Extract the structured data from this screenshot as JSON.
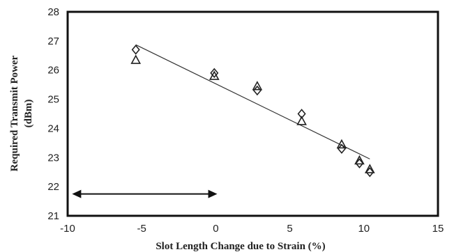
{
  "chart_data": {
    "type": "scatter",
    "title": "",
    "xlabel": "Slot Length Change due to Strain (%)",
    "ylabel_line1": "Required Transmit Power",
    "ylabel_line2": "(dBm)",
    "xlim": [
      -10,
      15
    ],
    "ylim": [
      21,
      28
    ],
    "xticks": [
      -10,
      -5,
      0,
      5,
      10,
      15
    ],
    "yticks": [
      21,
      22,
      23,
      24,
      25,
      26,
      27,
      28
    ],
    "grid": false,
    "series": [
      {
        "marker": "diamond",
        "points": [
          {
            "x": -5.4,
            "y": 26.7
          },
          {
            "x": -0.1,
            "y": 25.9
          },
          {
            "x": 2.8,
            "y": 25.3
          },
          {
            "x": 5.8,
            "y": 24.5
          },
          {
            "x": 8.5,
            "y": 23.3
          },
          {
            "x": 9.7,
            "y": 22.8
          },
          {
            "x": 10.4,
            "y": 22.5
          }
        ]
      },
      {
        "marker": "triangle",
        "points": [
          {
            "x": -5.4,
            "y": 26.35
          },
          {
            "x": -0.1,
            "y": 25.8
          },
          {
            "x": 2.8,
            "y": 25.45
          },
          {
            "x": 5.8,
            "y": 24.25
          },
          {
            "x": 8.5,
            "y": 23.45
          },
          {
            "x": 9.7,
            "y": 22.9
          },
          {
            "x": 10.4,
            "y": 22.6
          }
        ]
      }
    ],
    "trendline": {
      "x": [
        -5.4,
        10.4
      ],
      "y": [
        26.87,
        22.95
      ]
    },
    "annotation_arrow": {
      "x": [
        -9.7,
        0.1
      ],
      "y": 21.75,
      "style": "double-headed"
    }
  }
}
